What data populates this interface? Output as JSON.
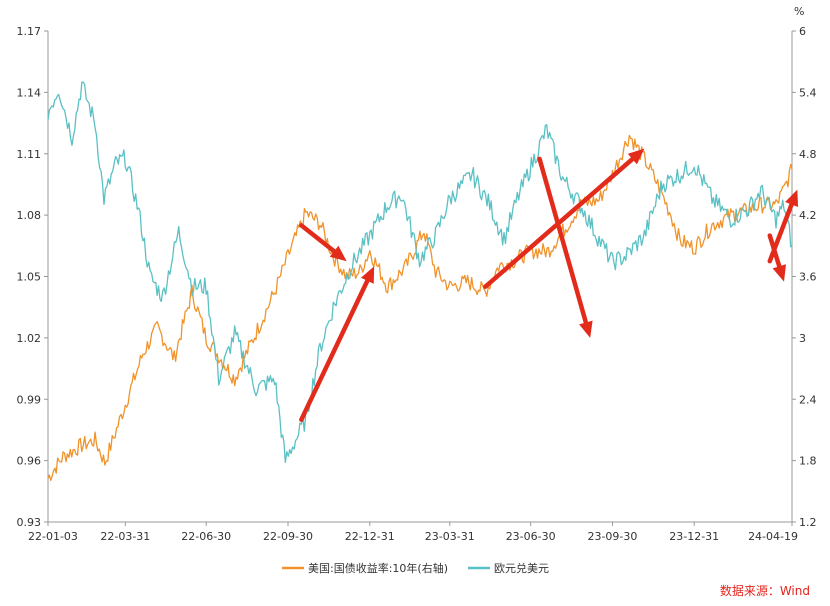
{
  "chart_data": {
    "type": "line",
    "unit_right": "%",
    "left_axis": {
      "ylim": [
        0.93,
        1.17
      ],
      "ticks": [
        "1.17",
        "1.14",
        "1.11",
        "1.08",
        "1.05",
        "1.02",
        "0.99",
        "0.96",
        "0.93"
      ]
    },
    "right_axis": {
      "ylim": [
        1.2,
        6.0
      ],
      "ticks": [
        "6",
        "5.4",
        "4.8",
        "4.2",
        "3.6",
        "3",
        "2.4",
        "1.8",
        "1.2"
      ]
    },
    "x_ticks": [
      "22-01-03",
      "22-03-31",
      "22-06-30",
      "22-09-30",
      "22-12-31",
      "23-03-31",
      "23-06-30",
      "23-09-30",
      "23-12-31",
      "24-04-19"
    ],
    "x_dates": [
      "2022-01-03",
      "2022-03-31",
      "2022-06-30",
      "2022-09-30",
      "2022-12-31",
      "2023-03-31",
      "2023-06-30",
      "2023-09-30",
      "2023-12-31",
      "2024-04-19"
    ],
    "legend_placement": "bottom",
    "series": [
      {
        "name": "美国:国债收益率:10年(右轴)",
        "axis": "right",
        "color": "#f0932b",
        "points": [
          [
            "2022-01-03",
            1.63
          ],
          [
            "2022-01-20",
            1.84
          ],
          [
            "2022-02-10",
            1.95
          ],
          [
            "2022-02-25",
            2.0
          ],
          [
            "2022-03-08",
            1.78
          ],
          [
            "2022-03-31",
            2.35
          ],
          [
            "2022-04-20",
            2.85
          ],
          [
            "2022-05-06",
            3.1
          ],
          [
            "2022-05-25",
            2.8
          ],
          [
            "2022-06-14",
            3.45
          ],
          [
            "2022-06-30",
            3.0
          ],
          [
            "2022-07-20",
            2.75
          ],
          [
            "2022-08-01",
            2.6
          ],
          [
            "2022-08-25",
            3.05
          ],
          [
            "2022-09-15",
            3.45
          ],
          [
            "2022-09-30",
            3.8
          ],
          [
            "2022-10-20",
            4.22
          ],
          [
            "2022-11-05",
            4.12
          ],
          [
            "2022-11-20",
            3.8
          ],
          [
            "2022-12-05",
            3.6
          ],
          [
            "2022-12-20",
            3.65
          ],
          [
            "2022-12-31",
            3.85
          ],
          [
            "2023-01-20",
            3.5
          ],
          [
            "2023-02-10",
            3.7
          ],
          [
            "2023-03-02",
            4.05
          ],
          [
            "2023-03-15",
            3.65
          ],
          [
            "2023-03-31",
            3.5
          ],
          [
            "2023-04-20",
            3.55
          ],
          [
            "2023-05-10",
            3.45
          ],
          [
            "2023-05-25",
            3.7
          ],
          [
            "2023-06-10",
            3.75
          ],
          [
            "2023-06-30",
            3.85
          ],
          [
            "2023-07-20",
            3.85
          ],
          [
            "2023-08-10",
            4.1
          ],
          [
            "2023-08-25",
            4.3
          ],
          [
            "2023-09-15",
            4.35
          ],
          [
            "2023-09-30",
            4.6
          ],
          [
            "2023-10-19",
            4.98
          ],
          [
            "2023-11-05",
            4.75
          ],
          [
            "2023-11-20",
            4.5
          ],
          [
            "2023-12-05",
            4.2
          ],
          [
            "2023-12-15",
            3.95
          ],
          [
            "2023-12-31",
            3.88
          ],
          [
            "2024-01-20",
            4.1
          ],
          [
            "2024-02-10",
            4.2
          ],
          [
            "2024-03-01",
            4.25
          ],
          [
            "2024-03-15",
            4.3
          ],
          [
            "2024-04-01",
            4.3
          ],
          [
            "2024-04-10",
            4.45
          ],
          [
            "2024-04-19",
            4.65
          ]
        ]
      },
      {
        "name": "欧元兑美元",
        "axis": "left",
        "color": "#5bc0c4",
        "points": [
          [
            "2022-01-03",
            1.13
          ],
          [
            "2022-01-15",
            1.142
          ],
          [
            "2022-01-30",
            1.118
          ],
          [
            "2022-02-10",
            1.144
          ],
          [
            "2022-02-25",
            1.125
          ],
          [
            "2022-03-07",
            1.088
          ],
          [
            "2022-03-20",
            1.105
          ],
          [
            "2022-03-31",
            1.108
          ],
          [
            "2022-04-15",
            1.082
          ],
          [
            "2022-04-28",
            1.05
          ],
          [
            "2022-05-12",
            1.04
          ],
          [
            "2022-05-30",
            1.072
          ],
          [
            "2022-06-14",
            1.045
          ],
          [
            "2022-06-30",
            1.045
          ],
          [
            "2022-07-14",
            1.0
          ],
          [
            "2022-08-01",
            1.022
          ],
          [
            "2022-08-25",
            0.995
          ],
          [
            "2022-09-15",
            1.0
          ],
          [
            "2022-09-27",
            0.96
          ],
          [
            "2022-10-20",
            0.98
          ],
          [
            "2022-11-05",
            1.015
          ],
          [
            "2022-11-20",
            1.035
          ],
          [
            "2022-12-10",
            1.055
          ],
          [
            "2022-12-31",
            1.07
          ],
          [
            "2023-01-20",
            1.085
          ],
          [
            "2023-02-05",
            1.09
          ],
          [
            "2023-02-25",
            1.058
          ],
          [
            "2023-03-15",
            1.07
          ],
          [
            "2023-03-31",
            1.088
          ],
          [
            "2023-04-25",
            1.1
          ],
          [
            "2023-05-15",
            1.085
          ],
          [
            "2023-05-31",
            1.068
          ],
          [
            "2023-06-15",
            1.088
          ],
          [
            "2023-07-18",
            1.122
          ],
          [
            "2023-08-05",
            1.098
          ],
          [
            "2023-08-25",
            1.085
          ],
          [
            "2023-09-15",
            1.068
          ],
          [
            "2023-09-30",
            1.057
          ],
          [
            "2023-10-15",
            1.06
          ],
          [
            "2023-11-05",
            1.07
          ],
          [
            "2023-11-25",
            1.095
          ],
          [
            "2023-12-15",
            1.1
          ],
          [
            "2023-12-31",
            1.105
          ],
          [
            "2024-01-20",
            1.088
          ],
          [
            "2024-02-10",
            1.078
          ],
          [
            "2024-03-01",
            1.083
          ],
          [
            "2024-03-15",
            1.092
          ],
          [
            "2024-04-01",
            1.078
          ],
          [
            "2024-04-10",
            1.085
          ],
          [
            "2024-04-19",
            1.065
          ]
        ]
      }
    ]
  },
  "source_note": "数据来源：Wind",
  "annotations": {
    "color": "#e32b1b",
    "arrows": [
      {
        "from": [
          "2022-10-15",
          4.1
        ],
        "to": [
          "2022-12-05",
          3.75
        ],
        "axis": "right"
      },
      {
        "from": [
          "2022-10-15",
          2.2
        ],
        "to": [
          "2023-01-05",
          3.7
        ],
        "axis": "right"
      },
      {
        "from": [
          "2023-05-10",
          3.5
        ],
        "to": [
          "2023-11-05",
          4.85
        ],
        "axis": "right"
      },
      {
        "from": [
          "2023-07-10",
          4.75
        ],
        "to": [
          "2023-09-05",
          3.0
        ],
        "axis": "right"
      },
      {
        "from": [
          "2024-03-25",
          3.75
        ],
        "to": [
          "2024-04-25",
          4.45
        ],
        "axis": "right"
      },
      {
        "from": [
          "2024-03-25",
          4.0
        ],
        "to": [
          "2024-04-10",
          3.55
        ],
        "axis": "right"
      }
    ]
  }
}
